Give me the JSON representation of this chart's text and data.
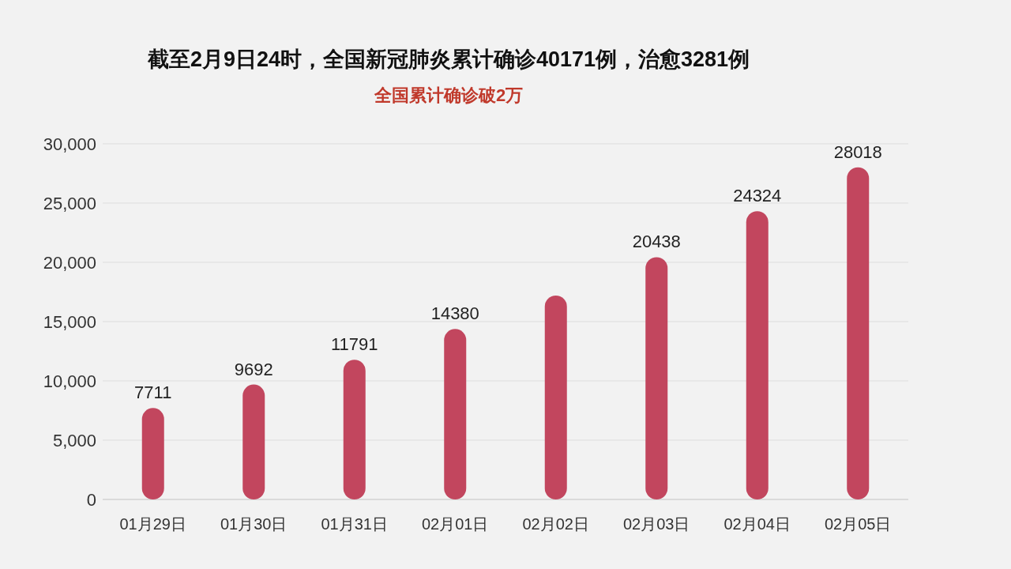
{
  "chart_data": {
    "type": "bar",
    "title": "截至2月9日24时，全国新冠肺炎累计确诊40171例，治愈3281例",
    "subtitle": "全国累计确诊破2万",
    "categories": [
      "01月29日",
      "01月30日",
      "01月31日",
      "02月01日",
      "02月02日",
      "02月03日",
      "02月04日",
      "02月05日"
    ],
    "series": [
      {
        "color": "#c2465e",
        "values": [
          7711,
          9692,
          11791,
          14380,
          17200,
          20438,
          24324,
          28018
        ],
        "value_labels": [
          "7711",
          "9692",
          "11791",
          "14380",
          null,
          "20438",
          "24324",
          "28018"
        ]
      }
    ],
    "ylim": [
      0,
      30000
    ],
    "yticks": [
      {
        "value": 0,
        "label": "0"
      },
      {
        "value": 5000,
        "label": "5,000"
      },
      {
        "value": 10000,
        "label": "10,000"
      },
      {
        "value": 15000,
        "label": "15,000"
      },
      {
        "value": 20000,
        "label": "20,000"
      },
      {
        "value": 25000,
        "label": "25,000"
      },
      {
        "value": 30000,
        "label": "30,000"
      }
    ],
    "grid": "y"
  }
}
